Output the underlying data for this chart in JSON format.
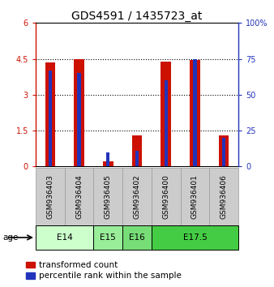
{
  "title": "GDS4591 / 1435723_at",
  "samples": [
    "GSM936403",
    "GSM936404",
    "GSM936405",
    "GSM936402",
    "GSM936400",
    "GSM936401",
    "GSM936406"
  ],
  "transformed_count": [
    4.35,
    4.48,
    0.2,
    1.3,
    4.38,
    4.45,
    1.3
  ],
  "percentile_rank": [
    67,
    65,
    10,
    11,
    60,
    75,
    20
  ],
  "age_labels": [
    {
      "label": "E14",
      "start": 0,
      "end": 2,
      "color": "#ccffcc"
    },
    {
      "label": "E15",
      "start": 2,
      "end": 3,
      "color": "#99ee99"
    },
    {
      "label": "E16",
      "start": 3,
      "end": 4,
      "color": "#77dd77"
    },
    {
      "label": "E17.5",
      "start": 4,
      "end": 7,
      "color": "#44cc44"
    }
  ],
  "ylim_left": [
    0,
    6
  ],
  "ylim_right": [
    0,
    100
  ],
  "yticks_left": [
    0,
    1.5,
    3,
    4.5,
    6
  ],
  "yticks_right": [
    0,
    25,
    50,
    75,
    100
  ],
  "bar_color_red": "#cc1100",
  "bar_color_blue": "#2233bb",
  "bar_width": 0.35,
  "blue_bar_width": 0.12,
  "background_color": "#ffffff",
  "title_fontsize": 10,
  "tick_fontsize": 7,
  "label_fontsize": 7.5,
  "sample_box_color": "#cccccc",
  "sample_box_edge": "#999999"
}
